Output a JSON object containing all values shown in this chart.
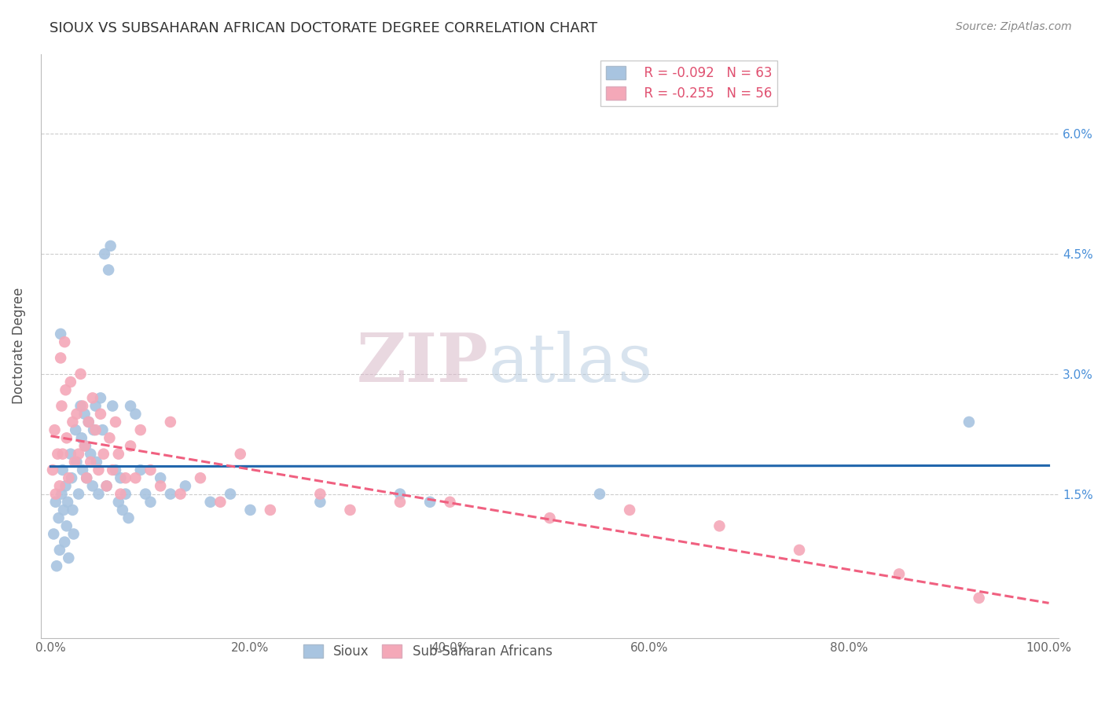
{
  "title": "SIOUX VS SUBSAHARAN AFRICAN DOCTORATE DEGREE CORRELATION CHART",
  "source": "Source: ZipAtlas.com",
  "ylabel": "Doctorate Degree",
  "xlabel": "",
  "xlim": [
    0,
    100
  ],
  "ylim": [
    0,
    6.5
  ],
  "yticks": [
    0,
    1.5,
    3.0,
    4.5,
    6.0
  ],
  "ytick_labels": [
    "",
    "1.5%",
    "3.0%",
    "4.5%",
    "6.0%"
  ],
  "xtick_labels": [
    "0.0%",
    "20.0%",
    "40.0%",
    "60.0%",
    "80.0%",
    "100.0%"
  ],
  "xticks": [
    0,
    20,
    40,
    60,
    80,
    100
  ],
  "grid_color": "#cccccc",
  "background_color": "#ffffff",
  "sioux_color": "#a8c4e0",
  "subsaharan_color": "#f4a8b8",
  "sioux_line_color": "#2166ac",
  "subsaharan_line_color": "#f06080",
  "legend_r_sioux": "R = -0.092",
  "legend_n_sioux": "N = 63",
  "legend_r_subsaharan": "R = -0.255",
  "legend_n_subsaharan": "N = 56",
  "watermark_zip": "ZIP",
  "watermark_atlas": "atlas",
  "sioux_x": [
    0.3,
    0.5,
    0.6,
    0.8,
    0.9,
    1.0,
    1.1,
    1.2,
    1.3,
    1.4,
    1.5,
    1.6,
    1.7,
    1.8,
    2.0,
    2.1,
    2.2,
    2.3,
    2.5,
    2.6,
    2.8,
    3.0,
    3.1,
    3.2,
    3.4,
    3.5,
    3.6,
    3.8,
    4.0,
    4.2,
    4.3,
    4.5,
    4.6,
    4.8,
    5.0,
    5.2,
    5.4,
    5.6,
    5.8,
    6.0,
    6.2,
    6.5,
    6.8,
    7.0,
    7.2,
    7.5,
    7.8,
    8.0,
    8.5,
    9.0,
    9.5,
    10.0,
    11.0,
    12.0,
    13.5,
    16.0,
    18.0,
    20.0,
    27.0,
    35.0,
    38.0,
    55.0,
    92.0
  ],
  "sioux_y": [
    1.0,
    1.4,
    0.6,
    1.2,
    0.8,
    3.5,
    1.5,
    1.8,
    1.3,
    0.9,
    1.6,
    1.1,
    1.4,
    0.7,
    2.0,
    1.7,
    1.3,
    1.0,
    2.3,
    1.9,
    1.5,
    2.6,
    2.2,
    1.8,
    2.5,
    2.1,
    1.7,
    2.4,
    2.0,
    1.6,
    2.3,
    2.6,
    1.9,
    1.5,
    2.7,
    2.3,
    4.5,
    1.6,
    4.3,
    4.6,
    2.6,
    1.8,
    1.4,
    1.7,
    1.3,
    1.5,
    1.2,
    2.6,
    2.5,
    1.8,
    1.5,
    1.4,
    1.7,
    1.5,
    1.6,
    1.4,
    1.5,
    1.3,
    1.4,
    1.5,
    1.4,
    1.5,
    2.4
  ],
  "subsaharan_x": [
    0.2,
    0.4,
    0.5,
    0.7,
    0.9,
    1.0,
    1.1,
    1.2,
    1.4,
    1.5,
    1.6,
    1.8,
    2.0,
    2.2,
    2.4,
    2.6,
    2.8,
    3.0,
    3.2,
    3.4,
    3.6,
    3.8,
    4.0,
    4.2,
    4.5,
    4.8,
    5.0,
    5.3,
    5.6,
    5.9,
    6.2,
    6.5,
    6.8,
    7.0,
    7.5,
    8.0,
    8.5,
    9.0,
    10.0,
    11.0,
    12.0,
    13.0,
    15.0,
    17.0,
    19.0,
    22.0,
    27.0,
    30.0,
    35.0,
    40.0,
    50.0,
    58.0,
    67.0,
    75.0,
    85.0,
    93.0
  ],
  "subsaharan_y": [
    1.8,
    2.3,
    1.5,
    2.0,
    1.6,
    3.2,
    2.6,
    2.0,
    3.4,
    2.8,
    2.2,
    1.7,
    2.9,
    2.4,
    1.9,
    2.5,
    2.0,
    3.0,
    2.6,
    2.1,
    1.7,
    2.4,
    1.9,
    2.7,
    2.3,
    1.8,
    2.5,
    2.0,
    1.6,
    2.2,
    1.8,
    2.4,
    2.0,
    1.5,
    1.7,
    2.1,
    1.7,
    2.3,
    1.8,
    1.6,
    2.4,
    1.5,
    1.7,
    1.4,
    2.0,
    1.3,
    1.5,
    1.3,
    1.4,
    1.4,
    1.2,
    1.3,
    1.1,
    0.8,
    0.5,
    0.2
  ]
}
